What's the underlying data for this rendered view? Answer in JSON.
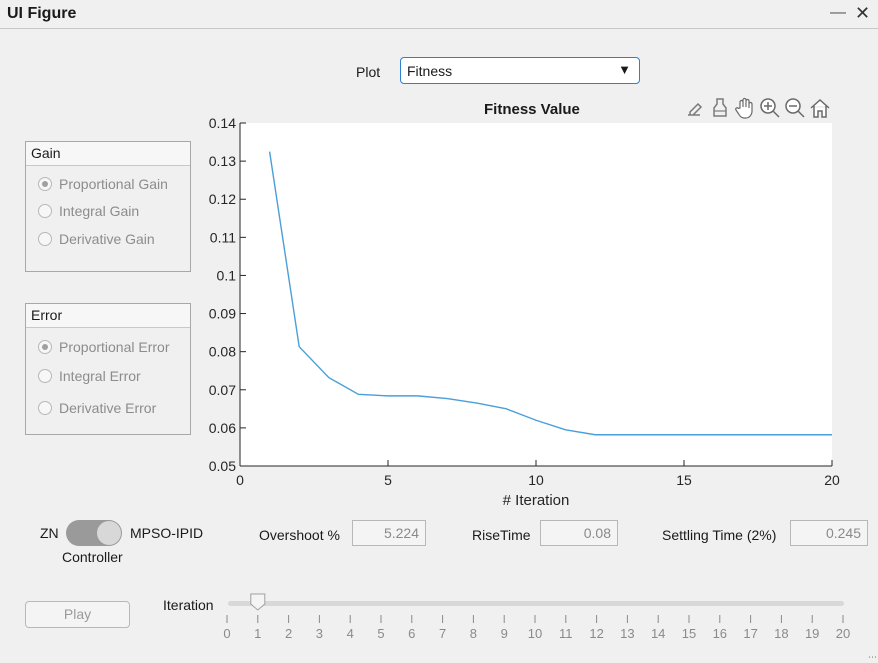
{
  "window": {
    "title": "UI Figure",
    "minimize_icon": "minimize-icon",
    "close_icon": "close-icon"
  },
  "plot_selector": {
    "label": "Plot",
    "value": "Fitness"
  },
  "axes": {
    "toolbar_icons": [
      "brush-icon",
      "data-cursor-icon",
      "pan-icon",
      "zoom-in-icon",
      "zoom-out-icon",
      "home-icon"
    ]
  },
  "chart_data": {
    "type": "line",
    "title": "Fitness Value",
    "xlabel": "# Iteration",
    "ylabel": "",
    "xlim": [
      0,
      20
    ],
    "ylim": [
      0.05,
      0.14
    ],
    "xticks": [
      0,
      5,
      10,
      15,
      20
    ],
    "yticks": [
      0.05,
      0.06,
      0.07,
      0.08,
      0.09,
      0.1,
      0.11,
      0.12,
      0.13,
      0.14
    ],
    "ytick_labels": [
      "0.05",
      "0.06",
      "0.07",
      "0.08",
      "0.09",
      "0.1",
      "0.11",
      "0.12",
      "0.13",
      "0.14"
    ],
    "grid": false,
    "color": "#4a9fd8",
    "x": [
      1,
      2,
      3,
      4,
      5,
      6,
      7,
      8,
      9,
      10,
      11,
      12,
      13,
      14,
      15,
      16,
      17,
      18,
      19,
      20
    ],
    "values": [
      0.1325,
      0.0813,
      0.0732,
      0.0688,
      0.0684,
      0.0684,
      0.0677,
      0.0665,
      0.065,
      0.062,
      0.0595,
      0.0582,
      0.0582,
      0.0582,
      0.0582,
      0.0582,
      0.0582,
      0.0582,
      0.0582,
      0.0582
    ]
  },
  "gain_panel": {
    "title": "Gain",
    "options": [
      {
        "label": "Proportional Gain",
        "selected": true
      },
      {
        "label": "Integral Gain",
        "selected": false
      },
      {
        "label": "Derivative Gain",
        "selected": false
      }
    ]
  },
  "error_panel": {
    "title": "Error",
    "options": [
      {
        "label": "Proportional Error",
        "selected": true
      },
      {
        "label": "Integral Error",
        "selected": false
      },
      {
        "label": "Derivative Error",
        "selected": false
      }
    ]
  },
  "controller": {
    "left_label": "ZN",
    "right_label": "MPSO-IPID",
    "caption": "Controller",
    "state": "MPSO-IPID"
  },
  "metrics": {
    "overshoot_label": "Overshoot %",
    "overshoot_value": "5.224",
    "risetime_label": "RiseTime",
    "risetime_value": "0.08",
    "settling_label": "Settling Time (2%)",
    "settling_value": "0.245"
  },
  "play_button": {
    "label": "Play"
  },
  "iteration_slider": {
    "label": "Iteration",
    "min": 0,
    "max": 20,
    "value": 1,
    "tick_labels": [
      "0",
      "1",
      "2",
      "3",
      "4",
      "5",
      "6",
      "7",
      "8",
      "9",
      "10",
      "11",
      "12",
      "13",
      "14",
      "15",
      "16",
      "17",
      "18",
      "19",
      "20"
    ]
  }
}
